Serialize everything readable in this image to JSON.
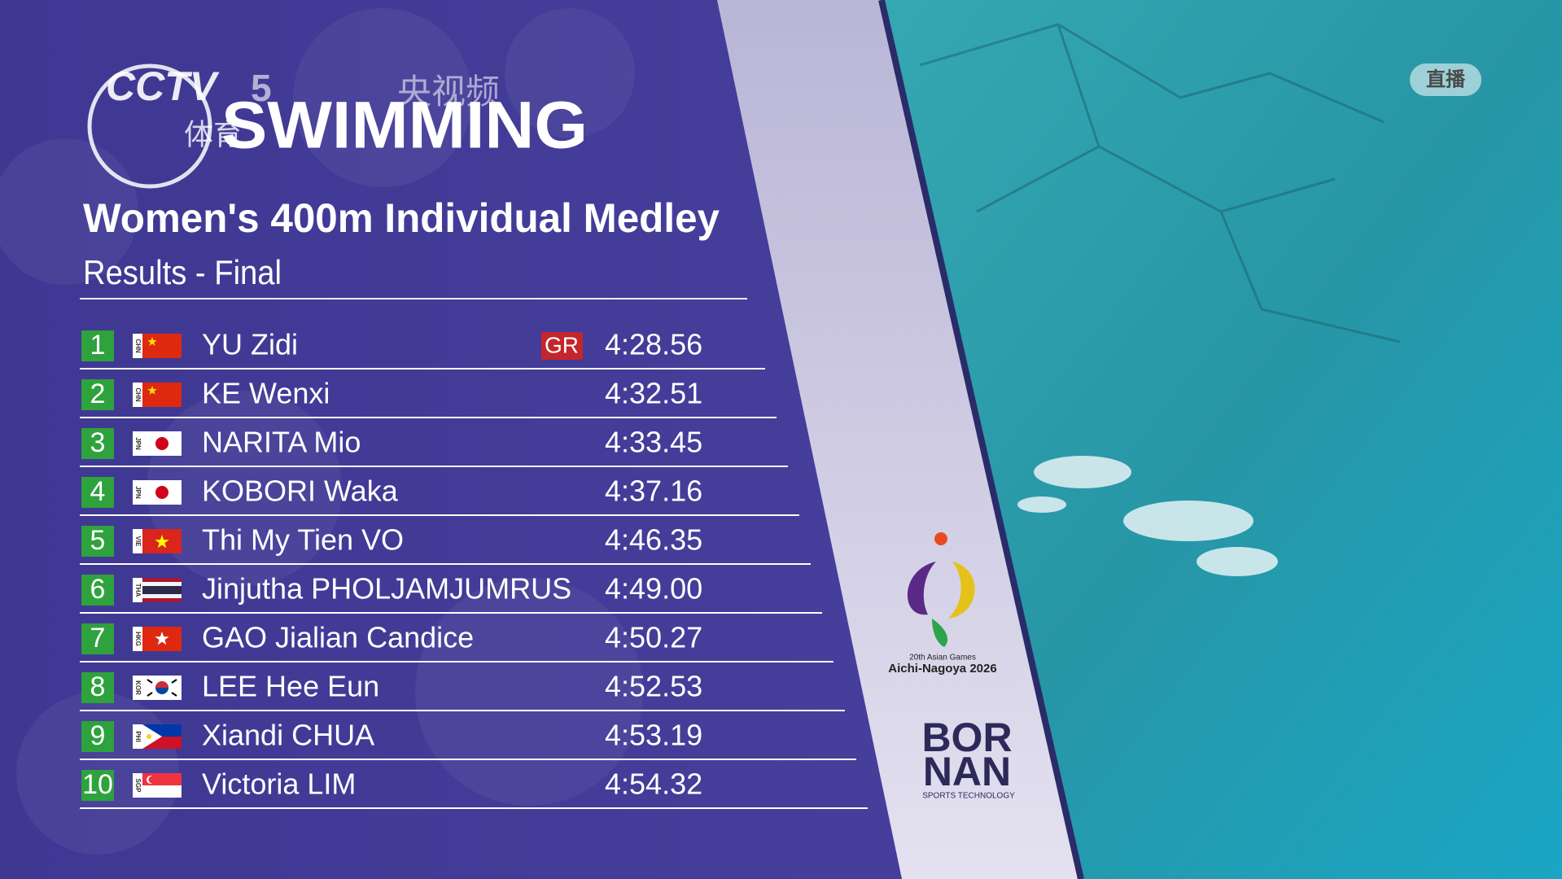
{
  "header": {
    "channel": "CCTV",
    "channel_number": "5",
    "channel_sub": "体育",
    "app": "央视频",
    "sport": "SWIMMING",
    "live": "直播"
  },
  "event": {
    "title": "Women's 400m Individual Medley",
    "subtitle": "Results - Final"
  },
  "results": [
    {
      "rank": 1,
      "country": "CHN",
      "name": "YU Zidi",
      "record": "GR",
      "time": "4:28.56"
    },
    {
      "rank": 2,
      "country": "CHN",
      "name": "KE Wenxi",
      "time": "4:32.51"
    },
    {
      "rank": 3,
      "country": "JPN",
      "name": "NARITA Mio",
      "time": "4:33.45"
    },
    {
      "rank": 4,
      "country": "JPN",
      "name": "KOBORI Waka",
      "time": "4:37.16"
    },
    {
      "rank": 5,
      "country": "VIE",
      "name": "Thi My Tien VO",
      "time": "4:46.35"
    },
    {
      "rank": 6,
      "country": "THA",
      "name": "Jinjutha PHOLJAMJUMRUS",
      "time": "4:49.00"
    },
    {
      "rank": 7,
      "country": "HKG",
      "name": "GAO Jialian Candice",
      "time": "4:50.27"
    },
    {
      "rank": 8,
      "country": "KOR",
      "name": "LEE Hee Eun",
      "time": "4:52.53"
    },
    {
      "rank": 9,
      "country": "PHI",
      "name": "Xiandi CHUA",
      "time": "4:53.19"
    },
    {
      "rank": 10,
      "country": "SGP",
      "name": "Victoria LIM",
      "time": "4:54.32"
    }
  ],
  "sponsors": {
    "games_edition": "20th Asian Games",
    "games_name": "Aichi-Nagoya 2026",
    "brand_line1": "BOR",
    "brand_line2": "NAN",
    "brand_tagline": "SPORTS TECHNOLOGY"
  }
}
